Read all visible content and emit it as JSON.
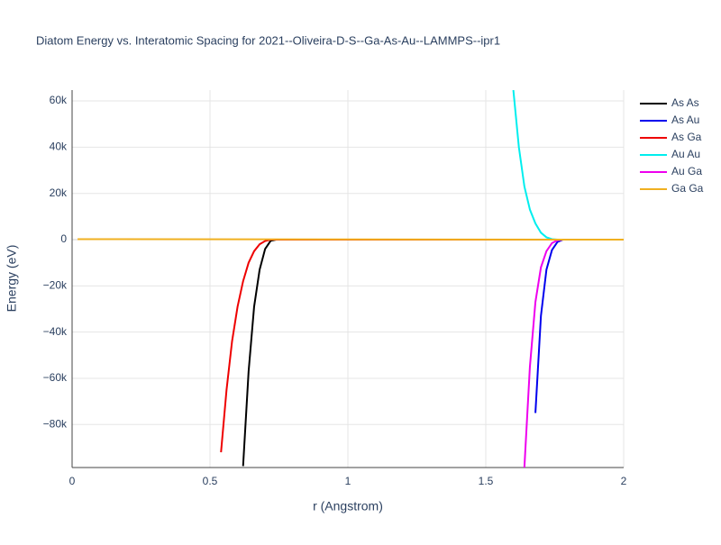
{
  "chart_data": {
    "type": "line",
    "title": "Diatom Energy vs. Interatomic Spacing for 2021--Oliveira-D-S--Ga-As-Au--LAMMPS--ipr1",
    "x_label": "r (Angstrom)",
    "y_label": "Energy (eV)",
    "xlim": [
      0,
      2
    ],
    "xticks": [
      0,
      0.5,
      1,
      1.5,
      2
    ],
    "ylim": [
      -98600,
      64700
    ],
    "yticks": [
      {
        "value": -80000,
        "label": "−80k"
      },
      {
        "value": -60000,
        "label": "−60k"
      },
      {
        "value": -40000,
        "label": "−40k"
      },
      {
        "value": -20000,
        "label": "−20k"
      },
      0,
      {
        "value": 20000,
        "label": "20k"
      },
      {
        "value": 40000,
        "label": "40k"
      },
      {
        "value": 60000,
        "label": "60k"
      }
    ],
    "grid": true,
    "legend": "right",
    "series": [
      {
        "name": "As As",
        "color": "#000000",
        "x": [
          0.62,
          0.64,
          0.66,
          0.68,
          0.7,
          0.72,
          0.74,
          2
        ],
        "values": [
          -98000,
          -57000,
          -29000,
          -13000,
          -4000,
          -500,
          0,
          0
        ]
      },
      {
        "name": "As Au",
        "color": "#0000ee",
        "x": [
          1.68,
          1.7,
          1.72,
          1.74,
          1.76,
          1.78,
          2
        ],
        "values": [
          -75000,
          -33000,
          -13000,
          -4500,
          -1000,
          0,
          0
        ]
      },
      {
        "name": "As Ga",
        "color": "#ee0000",
        "x": [
          0.54,
          0.56,
          0.58,
          0.6,
          0.62,
          0.64,
          0.66,
          0.68,
          0.7,
          0.72,
          2
        ],
        "values": [
          -92000,
          -65000,
          -44000,
          -29000,
          -18000,
          -10000,
          -5000,
          -2000,
          -600,
          0,
          0
        ]
      },
      {
        "name": "Au Au",
        "color": "#00eeee",
        "x": [
          1.6,
          1.62,
          1.64,
          1.66,
          1.68,
          1.7,
          1.72,
          1.74,
          1.76,
          2
        ],
        "values": [
          64700,
          40000,
          23000,
          13000,
          7000,
          3000,
          1000,
          200,
          0,
          0
        ]
      },
      {
        "name": "Au Ga",
        "color": "#ee00ee",
        "x": [
          1.64,
          1.66,
          1.68,
          1.7,
          1.72,
          1.74,
          1.76,
          1.78,
          2
        ],
        "values": [
          -98600,
          -55000,
          -27000,
          -12000,
          -5000,
          -1500,
          -300,
          0,
          0
        ]
      },
      {
        "name": "Ga Ga",
        "color": "#f0b020",
        "x": [
          0.02,
          1,
          2
        ],
        "values": [
          200,
          100,
          0
        ]
      }
    ]
  }
}
